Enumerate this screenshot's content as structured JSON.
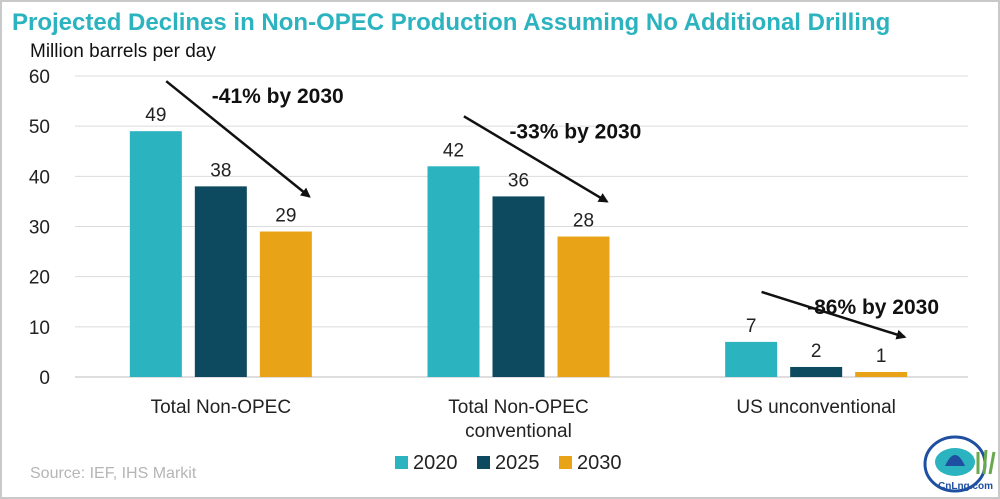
{
  "chart_data": {
    "type": "bar",
    "title": "Projected Declines in Non-OPEC Production Assuming No Additional Drilling",
    "ylabel": "Million barrels per day",
    "ylim": [
      0,
      60
    ],
    "yticks": [
      0,
      10,
      20,
      30,
      40,
      50,
      60
    ],
    "grid": true,
    "categories": [
      [
        "Total Non-OPEC"
      ],
      [
        "Total Non-OPEC",
        "conventional"
      ],
      [
        "US unconventional"
      ]
    ],
    "series": [
      {
        "name": "2020",
        "color": "#2bb3c0",
        "values": [
          49,
          42,
          7
        ]
      },
      {
        "name": "2025",
        "color": "#0e4a5f",
        "values": [
          38,
          36,
          2
        ]
      },
      {
        "name": "2030",
        "color": "#e8a317",
        "values": [
          29,
          28,
          1
        ]
      }
    ],
    "annotations": [
      "-41% by 2030",
      "-33% by 2030",
      "-86% by 2030"
    ],
    "legend_position": "bottom"
  },
  "source": "Source: IEF, IHS Markit",
  "watermark": "CnLng.com"
}
